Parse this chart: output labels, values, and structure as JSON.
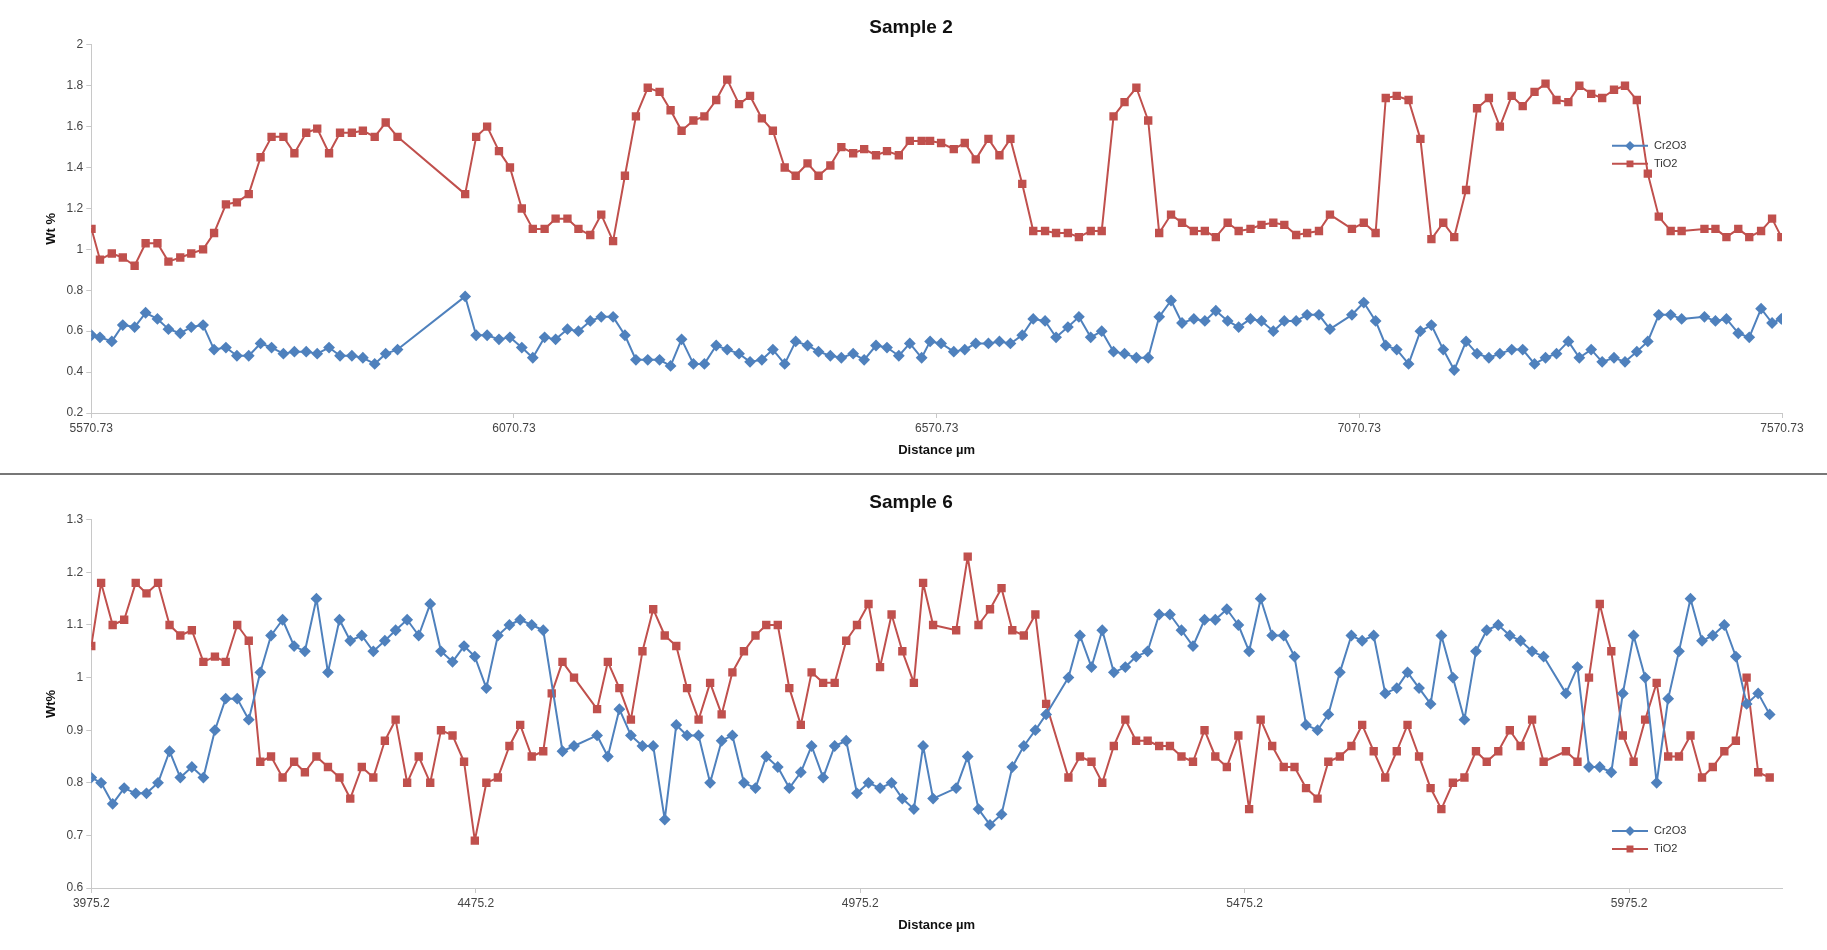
{
  "chart_data": [
    {
      "type": "line",
      "title": "Sample 2",
      "xlabel": "Distance µm",
      "ylabel": "Wt %",
      "legend": "right",
      "xlim": [
        5570.73,
        7570.73
      ],
      "xticks": [
        5570.73,
        6070.73,
        6570.73,
        7070.73,
        7570.73
      ],
      "ylim": [
        0.2,
        2
      ],
      "yticks": [
        0.2,
        0.4,
        0.6,
        0.8,
        1,
        1.2,
        1.4,
        1.6,
        1.8,
        2
      ],
      "x": [
        5571,
        5581,
        5595,
        5608,
        5622,
        5635,
        5649,
        5662,
        5676,
        5689,
        5703,
        5716,
        5730,
        5743,
        5757,
        5771,
        5784,
        5798,
        5811,
        5825,
        5838,
        5852,
        5865,
        5879,
        5892,
        5906,
        5919,
        5933,
        6013,
        6026,
        6039,
        6053,
        6066,
        6080,
        6093,
        6107,
        6120,
        6134,
        6147,
        6161,
        6174,
        6188,
        6202,
        6215,
        6229,
        6243,
        6256,
        6269,
        6283,
        6296,
        6310,
        6323,
        6337,
        6350,
        6364,
        6377,
        6391,
        6404,
        6418,
        6431,
        6445,
        6458,
        6472,
        6485,
        6499,
        6512,
        6526,
        6539,
        6553,
        6563,
        6576,
        6591,
        6604,
        6617,
        6632,
        6645,
        6658,
        6672,
        6685,
        6699,
        6712,
        6726,
        6739,
        6753,
        6766,
        6780,
        6793,
        6807,
        6821,
        6834,
        6848,
        6861,
        6875,
        6888,
        6901,
        6915,
        6928,
        6942,
        6955,
        6969,
        6982,
        6996,
        7009,
        7023,
        7036,
        7062,
        7076,
        7090,
        7102,
        7115,
        7129,
        7143,
        7156,
        7170,
        7183,
        7197,
        7210,
        7224,
        7237,
        7251,
        7264,
        7278,
        7291,
        7304,
        7318,
        7331,
        7345,
        7358,
        7372,
        7385,
        7399,
        7412,
        7425,
        7439,
        7452,
        7479,
        7492,
        7505,
        7519,
        7532,
        7546,
        7559,
        7570
      ],
      "series": [
        {
          "name": "Cr2O3",
          "color": "#4f81bd",
          "marker": "diamond",
          "values": [
            0.58,
            0.57,
            0.55,
            0.63,
            0.62,
            0.69,
            0.66,
            0.61,
            0.59,
            0.62,
            0.63,
            0.51,
            0.52,
            0.48,
            0.48,
            0.54,
            0.52,
            0.49,
            0.5,
            0.5,
            0.49,
            0.52,
            0.48,
            0.48,
            0.47,
            0.44,
            0.49,
            0.51,
            0.77,
            0.58,
            0.58,
            0.56,
            0.57,
            0.52,
            0.47,
            0.57,
            0.56,
            0.61,
            0.6,
            0.65,
            0.67,
            0.67,
            0.58,
            0.46,
            0.46,
            0.46,
            0.43,
            0.56,
            0.44,
            0.44,
            0.53,
            0.51,
            0.49,
            0.45,
            0.46,
            0.51,
            0.44,
            0.55,
            0.53,
            0.5,
            0.48,
            0.47,
            0.49,
            0.46,
            0.53,
            0.52,
            0.48,
            0.54,
            0.47,
            0.55,
            0.54,
            0.5,
            0.51,
            0.54,
            0.54,
            0.55,
            0.54,
            0.58,
            0.66,
            0.65,
            0.57,
            0.62,
            0.67,
            0.57,
            0.6,
            0.5,
            0.49,
            0.47,
            0.47,
            0.67,
            0.75,
            0.64,
            0.66,
            0.65,
            0.7,
            0.65,
            0.62,
            0.66,
            0.65,
            0.6,
            0.65,
            0.65,
            0.68,
            0.68,
            0.61,
            0.68,
            0.74,
            0.65,
            0.53,
            0.51,
            0.44,
            0.6,
            0.63,
            0.51,
            0.41,
            0.55,
            0.49,
            0.47,
            0.49,
            0.51,
            0.51,
            0.44,
            0.47,
            0.49,
            0.55,
            0.47,
            0.51,
            0.45,
            0.47,
            0.45,
            0.5,
            0.55,
            0.68,
            0.68,
            0.66,
            0.67,
            0.65,
            0.66,
            0.59,
            0.57,
            0.71,
            0.64,
            0.66
          ]
        },
        {
          "name": "TiO2",
          "color": "#c0504d",
          "marker": "square",
          "values": [
            1.1,
            0.95,
            0.98,
            0.96,
            0.92,
            1.03,
            1.03,
            0.94,
            0.96,
            0.98,
            1.0,
            1.08,
            1.22,
            1.23,
            1.27,
            1.45,
            1.55,
            1.55,
            1.47,
            1.57,
            1.59,
            1.47,
            1.57,
            1.57,
            1.58,
            1.55,
            1.62,
            1.55,
            1.27,
            1.55,
            1.6,
            1.48,
            1.4,
            1.2,
            1.1,
            1.1,
            1.15,
            1.15,
            1.1,
            1.07,
            1.17,
            1.04,
            1.36,
            1.65,
            1.79,
            1.77,
            1.68,
            1.58,
            1.63,
            1.65,
            1.73,
            1.83,
            1.71,
            1.75,
            1.64,
            1.58,
            1.4,
            1.36,
            1.42,
            1.36,
            1.41,
            1.5,
            1.47,
            1.49,
            1.46,
            1.48,
            1.46,
            1.53,
            1.53,
            1.53,
            1.52,
            1.49,
            1.52,
            1.44,
            1.54,
            1.46,
            1.54,
            1.32,
            1.09,
            1.09,
            1.08,
            1.08,
            1.06,
            1.09,
            1.09,
            1.65,
            1.72,
            1.79,
            1.63,
            1.08,
            1.17,
            1.13,
            1.09,
            1.09,
            1.06,
            1.13,
            1.09,
            1.1,
            1.12,
            1.13,
            1.12,
            1.07,
            1.08,
            1.09,
            1.17,
            1.1,
            1.13,
            1.08,
            1.74,
            1.75,
            1.73,
            1.54,
            1.05,
            1.13,
            1.06,
            1.29,
            1.69,
            1.74,
            1.6,
            1.75,
            1.7,
            1.77,
            1.81,
            1.73,
            1.72,
            1.8,
            1.76,
            1.74,
            1.78,
            1.8,
            1.73,
            1.37,
            1.16,
            1.09,
            1.09,
            1.1,
            1.1,
            1.06,
            1.1,
            1.06,
            1.09,
            1.15,
            1.06
          ]
        }
      ]
    },
    {
      "type": "line",
      "title": "Sample 6",
      "xlabel": "Distance µm",
      "ylabel": "Wt%",
      "legend": "bottom right",
      "xlim": [
        3975.2,
        6174
      ],
      "xticks": [
        3975.2,
        4475.2,
        4975.2,
        5475.2,
        5975.2
      ],
      "ylim": [
        0.6,
        1.3
      ],
      "yticks": [
        0.6,
        0.7,
        0.8,
        0.9,
        1,
        1.1,
        1.2,
        1.3
      ],
      "series": [
        {
          "name": "Cr2O3",
          "color": "#4f81bd",
          "marker": "diamond",
          "x": [
            3975.2,
            3988,
            4003,
            4018,
            4033,
            4047,
            4062,
            4077,
            4091,
            4106,
            4121,
            4136,
            4150,
            4165,
            4180,
            4195,
            4209,
            4224,
            4239,
            4253,
            4268,
            4283,
            4298,
            4312,
            4327,
            4342,
            4357,
            4371,
            4386,
            4401,
            4416,
            4430,
            4445,
            4460,
            4474,
            4489,
            4504,
            4519,
            4533,
            4548,
            4563,
            4588,
            4603,
            4633,
            4647,
            4662,
            4677,
            4692,
            4706,
            4721,
            4736,
            4750,
            4765,
            4780,
            4795,
            4809,
            4824,
            4839,
            4853,
            4868,
            4883,
            4898,
            4912,
            4927,
            4942,
            4957,
            4971,
            4986,
            5001,
            5016,
            5030,
            5045,
            5057,
            5070,
            5100,
            5115,
            5129,
            5144,
            5159,
            5173,
            5188,
            5203,
            5217,
            5246,
            5261,
            5276,
            5290,
            5305,
            5320,
            5334,
            5349,
            5364,
            5378,
            5393,
            5408,
            5423,
            5437,
            5452,
            5467,
            5481,
            5496,
            5511,
            5526,
            5540,
            5555,
            5570,
            5584,
            5599,
            5614,
            5628,
            5643,
            5658,
            5673,
            5687,
            5702,
            5717,
            5731,
            5746,
            5761,
            5776,
            5790,
            5805,
            5820,
            5834,
            5849,
            5864,
            5893,
            5908,
            5923,
            5937,
            5952,
            5967,
            5981,
            5996,
            6011,
            6026,
            6040,
            6055,
            6070,
            6084,
            6099,
            6114,
            6128,
            6143,
            6158
          ],
          "values": [
            0.81,
            0.8,
            0.76,
            0.79,
            0.78,
            0.78,
            0.8,
            0.86,
            0.81,
            0.83,
            0.81,
            0.9,
            0.96,
            0.96,
            0.92,
            1.01,
            1.08,
            1.11,
            1.06,
            1.05,
            1.15,
            1.01,
            1.11,
            1.07,
            1.08,
            1.05,
            1.07,
            1.09,
            1.11,
            1.08,
            1.14,
            1.05,
            1.03,
            1.06,
            1.04,
            0.98,
            1.08,
            1.1,
            1.11,
            1.1,
            1.09,
            0.86,
            0.87,
            0.89,
            0.85,
            0.94,
            0.89,
            0.87,
            0.87,
            0.73,
            0.91,
            0.89,
            0.89,
            0.8,
            0.88,
            0.89,
            0.8,
            0.79,
            0.85,
            0.83,
            0.79,
            0.82,
            0.87,
            0.81,
            0.87,
            0.88,
            0.78,
            0.8,
            0.79,
            0.8,
            0.77,
            0.75,
            0.87,
            0.77,
            0.79,
            0.85,
            0.75,
            0.72,
            0.74,
            0.83,
            0.87,
            0.9,
            0.93,
            1.0,
            1.08,
            1.02,
            1.09,
            1.01,
            1.02,
            1.04,
            1.05,
            1.12,
            1.12,
            1.09,
            1.06,
            1.11,
            1.11,
            1.13,
            1.1,
            1.05,
            1.15,
            1.08,
            1.08,
            1.04,
            0.91,
            0.9,
            0.93,
            1.01,
            1.08,
            1.07,
            1.08,
            0.97,
            0.98,
            1.01,
            0.98,
            0.95,
            1.08,
            1.0,
            0.92,
            1.05,
            1.09,
            1.1,
            1.08,
            1.07,
            1.05,
            1.04,
            0.97,
            1.02,
            0.83,
            0.83,
            0.82,
            0.97,
            1.08,
            1.0,
            0.8,
            0.96,
            1.05,
            1.15,
            1.07,
            1.08,
            1.1,
            1.04,
            0.95,
            0.97,
            0.93
          ]
        },
        {
          "name": "TiO2",
          "color": "#c0504d",
          "marker": "square",
          "x": [
            3975.2,
            3988,
            4003,
            4018,
            4033,
            4047,
            4062,
            4077,
            4091,
            4106,
            4121,
            4136,
            4150,
            4165,
            4180,
            4195,
            4209,
            4224,
            4239,
            4253,
            4268,
            4283,
            4298,
            4312,
            4327,
            4342,
            4357,
            4371,
            4386,
            4401,
            4416,
            4430,
            4445,
            4460,
            4474,
            4489,
            4504,
            4519,
            4533,
            4548,
            4563,
            4574,
            4588,
            4603,
            4633,
            4647,
            4662,
            4677,
            4692,
            4706,
            4721,
            4736,
            4750,
            4765,
            4780,
            4795,
            4809,
            4824,
            4839,
            4853,
            4868,
            4883,
            4898,
            4912,
            4927,
            4942,
            4957,
            4971,
            4986,
            5001,
            5016,
            5030,
            5045,
            5057,
            5070,
            5100,
            5115,
            5129,
            5144,
            5159,
            5173,
            5188,
            5203,
            5217,
            5246,
            5261,
            5276,
            5290,
            5305,
            5320,
            5334,
            5349,
            5364,
            5378,
            5393,
            5408,
            5423,
            5437,
            5452,
            5467,
            5481,
            5496,
            5511,
            5526,
            5540,
            5555,
            5570,
            5584,
            5599,
            5614,
            5628,
            5643,
            5658,
            5673,
            5687,
            5702,
            5717,
            5731,
            5746,
            5761,
            5776,
            5790,
            5805,
            5820,
            5834,
            5849,
            5864,
            5893,
            5908,
            5923,
            5937,
            5952,
            5967,
            5981,
            5996,
            6011,
            6026,
            6040,
            6055,
            6070,
            6084,
            6099,
            6114,
            6128,
            6143,
            6158
          ],
          "values": [
            1.06,
            1.18,
            1.1,
            1.11,
            1.18,
            1.16,
            1.18,
            1.1,
            1.08,
            1.09,
            1.03,
            1.04,
            1.03,
            1.1,
            1.07,
            0.84,
            0.85,
            0.81,
            0.84,
            0.82,
            0.85,
            0.83,
            0.81,
            0.77,
            0.83,
            0.81,
            0.88,
            0.92,
            0.8,
            0.85,
            0.8,
            0.9,
            0.89,
            0.84,
            0.69,
            0.8,
            0.81,
            0.87,
            0.91,
            0.85,
            0.86,
            0.97,
            1.03,
            1.0,
            0.94,
            1.03,
            0.98,
            0.92,
            1.05,
            1.13,
            1.08,
            1.06,
            0.98,
            0.92,
            0.99,
            0.93,
            1.01,
            1.05,
            1.08,
            1.1,
            1.1,
            0.98,
            0.91,
            1.01,
            0.99,
            0.99,
            1.07,
            1.1,
            1.14,
            1.02,
            1.12,
            1.05,
            0.99,
            1.18,
            1.1,
            1.09,
            1.23,
            1.1,
            1.13,
            1.17,
            1.09,
            1.08,
            1.12,
            0.95,
            0.81,
            0.85,
            0.84,
            0.8,
            0.87,
            0.92,
            0.88,
            0.88,
            0.87,
            0.87,
            0.85,
            0.84,
            0.9,
            0.85,
            0.83,
            0.89,
            0.75,
            0.92,
            0.87,
            0.83,
            0.83,
            0.79,
            0.77,
            0.84,
            0.85,
            0.87,
            0.91,
            0.86,
            0.81,
            0.86,
            0.91,
            0.85,
            0.79,
            0.75,
            0.8,
            0.81,
            0.86,
            0.84,
            0.86,
            0.9,
            0.87,
            0.92,
            0.84,
            0.86,
            0.84,
            1.0,
            1.14,
            1.05,
            0.89,
            0.84,
            0.92,
            0.99,
            0.85,
            0.85,
            0.89,
            0.81,
            0.83,
            0.86,
            0.88,
            1.0,
            0.82,
            0.81
          ]
        }
      ]
    }
  ]
}
